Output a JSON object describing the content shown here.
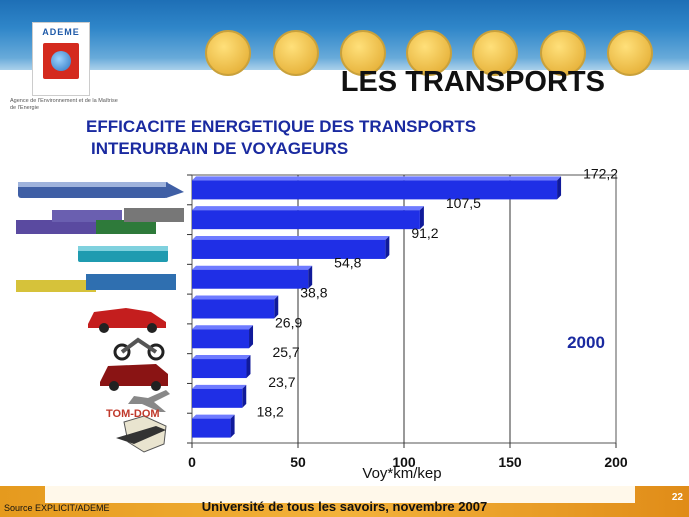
{
  "header": {
    "logo_text": "ADEME",
    "logo_subtitle": "Agence de l'Environnement et de la Maîtrise de l'Energie",
    "title": "LES TRANSPORTS",
    "subtitle_line1": "EFFICACITE ENERGETIQUE DES TRANSPORTS",
    "subtitle_line2": "INTERURBAIN DE VOYAGEURS"
  },
  "theme_icons": [
    "balloon-icon",
    "france-map-icon",
    "sun-icon",
    "house-icon",
    "chart-icon",
    "mountains-icon",
    "hammer-icon"
  ],
  "chart_data": {
    "type": "bar",
    "orientation": "horizontal",
    "values": [
      172.2,
      107.5,
      91.2,
      54.8,
      38.8,
      26.9,
      25.7,
      23.7,
      18.2
    ],
    "value_labels": [
      "172,2",
      "107,5",
      "91,2",
      "54,8",
      "38,8",
      "26,9",
      "25,7",
      "23,7",
      "18,2"
    ],
    "xlabel": "Voy*km/kep",
    "xlim": [
      0,
      200
    ],
    "x_ticks": [
      "0",
      "50",
      "100",
      "150",
      "200"
    ],
    "annotation": "2000",
    "grid": "vertical",
    "bar_color": "#1f2fe6"
  },
  "category_labels": {
    "tom_dom": "TOM-DOM"
  },
  "footer": {
    "source": "Source EXPLICIT/ADEME",
    "event": "Université de tous les savoirs, novembre 2007",
    "page": "22"
  }
}
